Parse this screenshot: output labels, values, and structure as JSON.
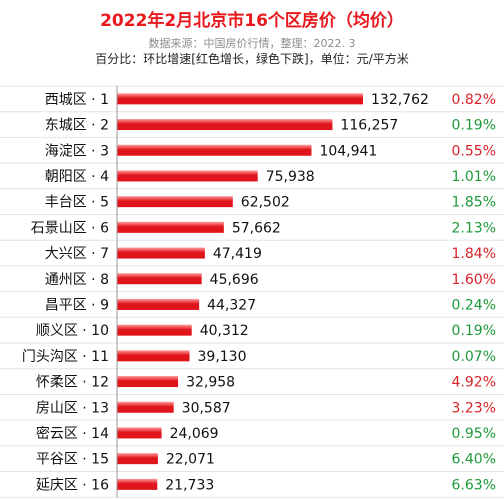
{
  "chart_data": {
    "type": "bar",
    "orientation": "horizontal",
    "title": "2022年2月北京市16个区房价（均价）",
    "source": "数据来源：中国房价行情，整理：2022. 3",
    "note": "百分比：环比增速[红色增长，绿色下跌]，单位：元/平方米",
    "categories": [
      "西城区 · 1",
      "东城区 · 2",
      "海淀区 · 3",
      "朝阳区 · 4",
      "丰台区 · 5",
      "石景山区 · 6",
      "大兴区 · 7",
      "通州区 · 8",
      "昌平区 · 9",
      "顺义区 · 10",
      "门头沟区 · 11",
      "怀柔区 · 12",
      "房山区 · 13",
      "密云区 · 14",
      "平谷区 · 15",
      "延庆区 · 16"
    ],
    "values": [
      132762,
      116257,
      104941,
      75938,
      62502,
      57662,
      47419,
      45696,
      44327,
      40312,
      39130,
      32958,
      30587,
      24069,
      22071,
      21733
    ],
    "value_labels": [
      "132,762",
      "116,257",
      "104,941",
      "75,938",
      "62,502",
      "57,662",
      "47,419",
      "45,696",
      "44,327",
      "40,312",
      "39,130",
      "32,958",
      "30,587",
      "24,069",
      "22,071",
      "21,733"
    ],
    "mom_change": [
      "0.82%",
      "0.19%",
      "0.55%",
      "1.01%",
      "1.85%",
      "2.13%",
      "1.84%",
      "1.60%",
      "0.24%",
      "0.19%",
      "0.07%",
      "4.92%",
      "3.23%",
      "0.95%",
      "6.40%",
      "6.63%"
    ],
    "mom_direction": [
      "up",
      "down",
      "up",
      "down",
      "down",
      "down",
      "up",
      "up",
      "down",
      "down",
      "down",
      "up",
      "up",
      "down",
      "down",
      "down"
    ],
    "xlim": [
      0,
      132762
    ],
    "grid": false,
    "legend": "none"
  },
  "colors": {
    "title": "#e8181d",
    "bar_light": "#ff9a9a",
    "bar_dark": "#e0141b",
    "up": "#d8232a",
    "down": "#1f9a3a"
  }
}
